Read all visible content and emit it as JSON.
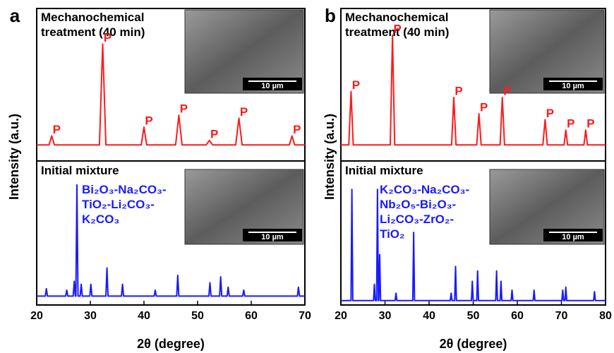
{
  "chart_data": [
    {
      "type": "line",
      "panel_label": "a",
      "xlabel": "2θ (degree)",
      "ylabel": "Intensity (a.u.)",
      "xlim": [
        20,
        70
      ],
      "xticks": [
        20,
        30,
        40,
        50,
        60,
        70
      ],
      "ylim": [
        0,
        100
      ],
      "composition": "Bi₂O₃-Na₂CO₃-TiO₂-Li₂CO₃-K₂CO₃",
      "scale_bar": "10 µm",
      "series": [
        {
          "name": "Mechanochemical treatment (40 min)",
          "color": "#ff1a1a",
          "x": [
            20,
            22.3,
            22.8,
            23.3,
            31.7,
            32.3,
            32.9,
            39.5,
            40,
            40.5,
            45.9,
            46.5,
            47.1,
            51.6,
            52.2,
            52.8,
            57.1,
            57.7,
            58.3,
            67.1,
            67.6,
            68.1,
            70
          ],
          "values": [
            54,
            54,
            57,
            54,
            54,
            88,
            54,
            54,
            60,
            54,
            54,
            64,
            54,
            54,
            55.5,
            54,
            54,
            63,
            54,
            54,
            57,
            54,
            54
          ]
        },
        {
          "name": "Initial mixture",
          "color": "#1a1aff",
          "x": [
            20,
            21.6,
            21.8,
            22,
            25.4,
            25.6,
            25.8,
            26.8,
            27,
            27.2,
            27.3,
            27.5,
            27.7,
            28.1,
            28.3,
            28.5,
            29.9,
            30.1,
            30.3,
            32.9,
            33.1,
            33.3,
            35.8,
            36,
            36.2,
            41.9,
            42.1,
            42.3,
            46.1,
            46.3,
            46.5,
            52.1,
            52.3,
            52.5,
            54.1,
            54.3,
            54.5,
            55.5,
            55.7,
            55.9,
            58.4,
            58.6,
            58.8,
            68.6,
            68.8,
            69,
            70
          ],
          "values": [
            3,
            3,
            5.5,
            3,
            3,
            5,
            3,
            3,
            8,
            3,
            3,
            40.5,
            3,
            3,
            7,
            3,
            3,
            7,
            3,
            3,
            12.5,
            3,
            3,
            7,
            3,
            3,
            5,
            3,
            3,
            10,
            3,
            3,
            7.5,
            3,
            3,
            9.5,
            3,
            3,
            6,
            3,
            3,
            5,
            3,
            3,
            6,
            3,
            3
          ]
        }
      ],
      "peak_labels": [
        {
          "text": "P",
          "x": 22.8
        },
        {
          "text": "P",
          "x": 32.3
        },
        {
          "text": "P",
          "x": 40
        },
        {
          "text": "P",
          "x": 46.5
        },
        {
          "text": "P",
          "x": 52.2
        },
        {
          "text": "P",
          "x": 57.7
        },
        {
          "text": "P",
          "x": 67.6
        }
      ]
    },
    {
      "type": "line",
      "panel_label": "b",
      "xlabel": "2θ (degree)",
      "ylabel": "Intensity (a.u.)",
      "xlim": [
        20,
        80
      ],
      "xticks": [
        20,
        30,
        40,
        50,
        60,
        70,
        80
      ],
      "ylim": [
        0,
        100
      ],
      "composition": "K₂CO₃-Na₂CO₃-Nb₂O₅-Bi₂O₃-Li₂CO₃-ZrO₂-TiO₂",
      "scale_bar": "10 µm",
      "series": [
        {
          "name": "Mechanochemical treatment (40 min)",
          "color": "#ff1a1a",
          "x": [
            20,
            21.8,
            22.3,
            22.8,
            31.2,
            31.7,
            32.2,
            45.1,
            45.6,
            46.1,
            50.8,
            51.3,
            51.8,
            56.1,
            56.6,
            57.1,
            65.8,
            66.3,
            66.8,
            70.6,
            71,
            71.4,
            75.1,
            75.5,
            75.9,
            80
          ],
          "values": [
            54,
            54,
            72,
            54,
            54,
            91,
            54,
            54,
            70,
            54,
            54,
            64.5,
            54,
            54,
            70,
            54,
            54,
            62.5,
            54,
            54,
            59,
            54,
            54,
            59,
            54,
            54
          ]
        },
        {
          "name": "Initial mixture",
          "color": "#1a1aff",
          "x": [
            20,
            22.3,
            22.5,
            22.7,
            27.4,
            27.6,
            27.8,
            28.1,
            28.3,
            28.5,
            28.6,
            28.8,
            29,
            32.3,
            32.5,
            32.7,
            36.3,
            36.5,
            36.7,
            44.8,
            45,
            45.2,
            45.8,
            46,
            46.2,
            49.6,
            49.8,
            50,
            50.8,
            51,
            51.2,
            55.1,
            55.3,
            55.5,
            56.1,
            56.3,
            56.5,
            58.6,
            58.8,
            59,
            63.6,
            63.8,
            64,
            70.1,
            70.3,
            70.5,
            70.8,
            71,
            71.2,
            77.3,
            77.5,
            77.7,
            80
          ],
          "values": [
            1.5,
            1.5,
            39,
            1.5,
            1.5,
            7,
            1.5,
            1.5,
            39,
            1.5,
            1.5,
            17,
            1.5,
            1.5,
            4,
            1.5,
            1.5,
            24.5,
            1.5,
            1.5,
            4,
            1.5,
            1.5,
            13,
            1.5,
            1.5,
            8,
            1.5,
            1.5,
            11.5,
            1.5,
            1.5,
            11.5,
            1.5,
            1.5,
            8,
            1.5,
            1.5,
            5,
            1.5,
            1.5,
            5,
            1.5,
            1.5,
            5,
            1.5,
            1.5,
            6,
            1.5,
            1.5,
            4.5,
            1.5,
            1.5
          ]
        }
      ],
      "peak_labels": [
        {
          "text": "P",
          "x": 22.3
        },
        {
          "text": "P",
          "x": 31.7
        },
        {
          "text": "P",
          "x": 45.6
        },
        {
          "text": "P",
          "x": 51.3
        },
        {
          "text": "P",
          "x": 56.6
        },
        {
          "text": "P",
          "x": 66.3
        },
        {
          "text": "P",
          "x": 71
        },
        {
          "text": "P",
          "x": 75.5
        }
      ]
    }
  ]
}
